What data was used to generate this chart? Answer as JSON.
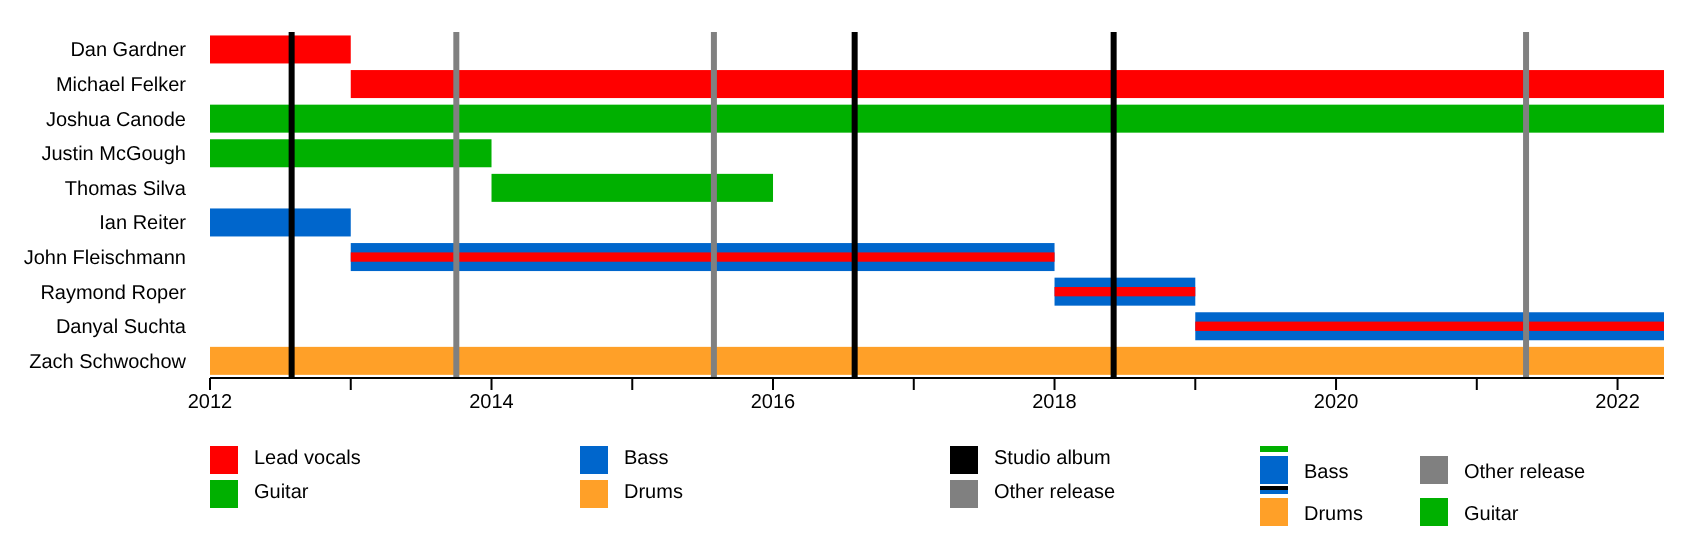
{
  "chart_data": {
    "type": "bar",
    "orientation": "horizontal",
    "categories": [
      "Dan Gardner",
      "Michael Felker",
      "Joshua Canode",
      "Justin McGough",
      "Thomas Silva",
      "Ian Reiter",
      "John Fleischmann",
      "Raymond Roper",
      "Danyal Suchta",
      "Zach Schwochow"
    ],
    "series": [
      {
        "name": "Lead vocals",
        "color": "#ff0000",
        "base": [
          2012,
          2013,
          null,
          null,
          null,
          null,
          2013,
          2018,
          2019,
          null
        ],
        "values": [
          1,
          9.33,
          null,
          null,
          null,
          null,
          5,
          1,
          3.33,
          null
        ]
      },
      {
        "name": "Guitar",
        "color": "#00b000",
        "base": [
          null,
          null,
          2012,
          2012,
          2014,
          null,
          null,
          null,
          null,
          null
        ],
        "values": [
          null,
          null,
          10.33,
          2,
          2,
          null,
          null,
          null,
          null,
          null
        ]
      },
      {
        "name": "Bass",
        "color": "#0066cc",
        "base": [
          null,
          null,
          null,
          null,
          null,
          2012,
          2013,
          2018,
          2019,
          null
        ],
        "values": [
          null,
          null,
          null,
          null,
          null,
          1,
          5,
          1,
          3.33,
          null
        ]
      },
      {
        "name": "Drums",
        "color": "#ffa028",
        "base": [
          null,
          null,
          null,
          null,
          null,
          null,
          null,
          null,
          null,
          2012
        ],
        "values": [
          null,
          null,
          null,
          null,
          null,
          null,
          null,
          null,
          null,
          10.33
        ]
      }
    ],
    "xlim": [
      2012,
      2022.33
    ],
    "xticks": [
      2012,
      {
        "value": 2013,
        "label": null
      },
      2014,
      {
        "value": 2015,
        "label": null
      },
      2016,
      {
        "value": 2017,
        "label": null
      },
      2018,
      {
        "value": 2019,
        "label": null
      },
      2020,
      {
        "value": 2021,
        "label": null
      },
      2022
    ],
    "ref_lines": [
      {
        "axis": "x",
        "value": 2012.58,
        "label": "Studio album",
        "color": "#000000"
      },
      {
        "axis": "x",
        "value": 2013.75,
        "label": "Other release",
        "color": "#808080"
      },
      {
        "axis": "x",
        "value": 2015.58,
        "color": "#808080"
      },
      {
        "axis": "x",
        "value": 2016.58,
        "color": "#000000"
      },
      {
        "axis": "x",
        "value": 2018.42,
        "color": "#000000"
      },
      {
        "axis": "x",
        "value": 2021.35,
        "color": "#808080"
      }
    ],
    "annotations": [
      "Bass",
      "Drums",
      "Other release",
      "Guitar"
    ],
    "legend": "bottom"
  }
}
